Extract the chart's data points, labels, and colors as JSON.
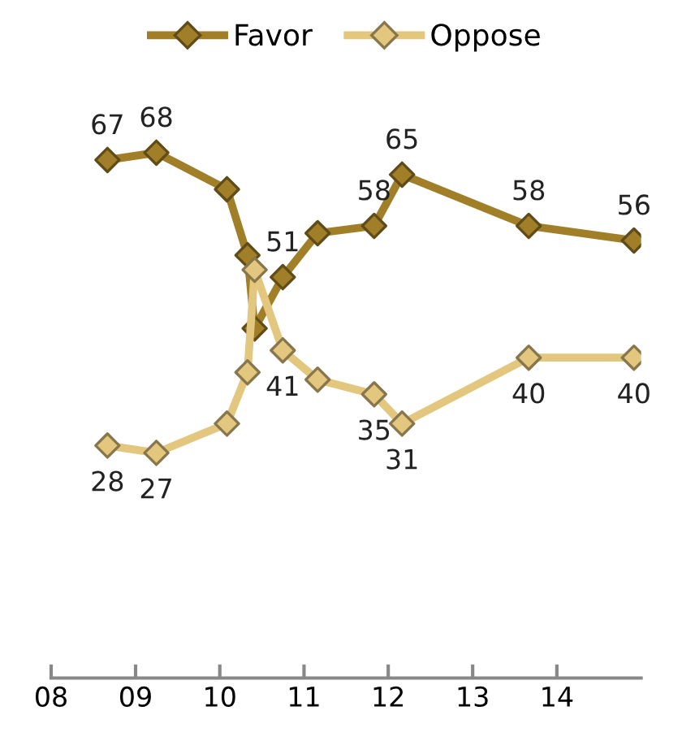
{
  "chart_data": {
    "type": "line",
    "x": [
      "2008-09",
      "2009-04",
      "2010-02",
      "2010-05",
      "2010-06",
      "2010-10",
      "2011-03",
      "2011-11",
      "2012-03",
      "2013-09",
      "2014-12"
    ],
    "series": [
      {
        "name": "Favor",
        "color": "#a07f28",
        "values": [
          67,
          68,
          63,
          54,
          44,
          51,
          57,
          58,
          65,
          58,
          56
        ],
        "value_labels": [
          "67",
          "68",
          null,
          null,
          null,
          "51",
          null,
          "58",
          "65",
          "58",
          "56"
        ]
      },
      {
        "name": "Oppose",
        "color": "#e3c77f",
        "values": [
          28,
          27,
          31,
          38,
          52,
          41,
          37,
          35,
          31,
          40,
          40
        ],
        "value_labels": [
          "28",
          "27",
          null,
          null,
          null,
          "41",
          null,
          "35",
          "31",
          "40",
          "40"
        ]
      }
    ],
    "xlim": [
      "2008",
      "2015"
    ],
    "xticks": [
      {
        "value": "2008",
        "label": "08"
      },
      {
        "value": "2009",
        "label": "09"
      },
      {
        "value": "2010",
        "label": "10"
      },
      {
        "value": "2011",
        "label": "11"
      },
      {
        "value": "2012",
        "label": "12"
      },
      {
        "value": "2013",
        "label": "13"
      },
      {
        "value": "2014",
        "label": "14"
      }
    ],
    "tick_labels": "x",
    "grid": false,
    "legend": "top",
    "marker": "diamond",
    "line_style": "solid"
  }
}
